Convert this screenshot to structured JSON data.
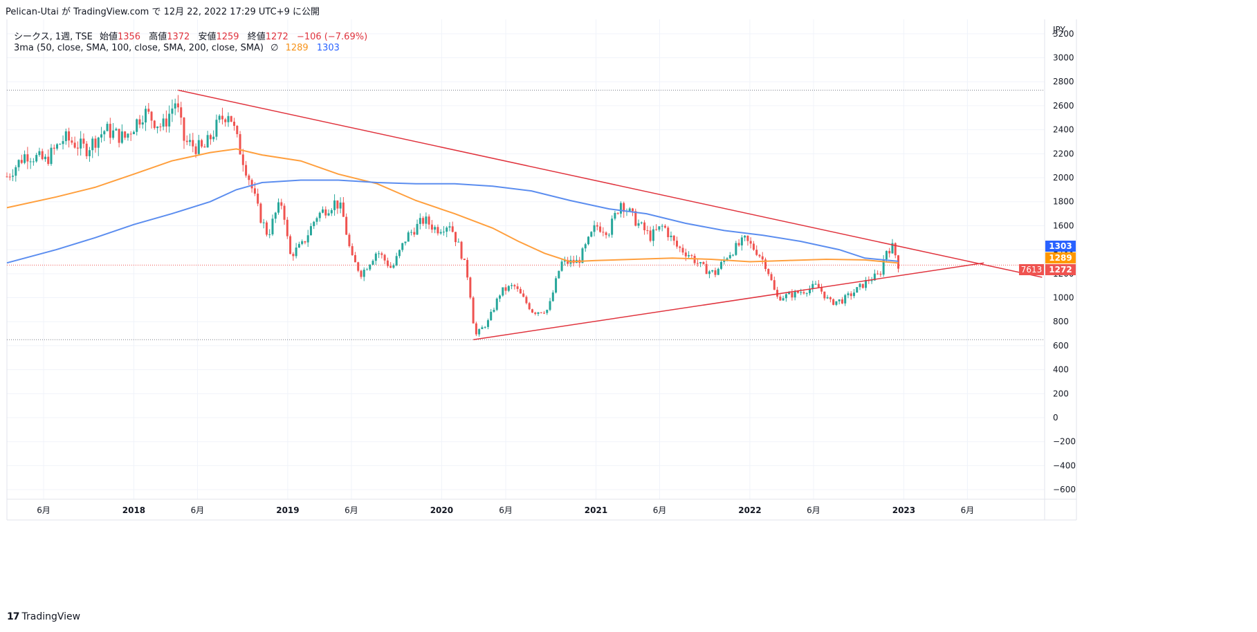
{
  "attribution": "Pelican-Utai が TradingView.com で 12月 22, 2022 17:29 UTC+9 に公開",
  "legend": {
    "symbol": "シークス, 1週, TSE",
    "open_label": "始値",
    "open": "1356",
    "high_label": "高値",
    "high": "1372",
    "low_label": "安値",
    "low": "1259",
    "close_label": "終値",
    "close": "1272",
    "change": "−106 (−7.69%)",
    "ma_label": "3ma (50, close, SMA, 100, close, SMA, 200, close, SMA)",
    "ma_hidden_icon": "∅",
    "ma100": "1289",
    "ma200": "1303"
  },
  "brand": "TradingView",
  "brand_logo": "17",
  "colors": {
    "up": "#26a69a",
    "down": "#ef5350",
    "ma100": "#ff9f3d",
    "ma200": "#5b8def",
    "trendline": "#e0333d",
    "grid": "#f0f3fa",
    "text": "#131722"
  },
  "chart_data": {
    "type": "candlestick",
    "currency": "JPY",
    "y_ticks": [
      3200,
      3000,
      2800,
      2600,
      2400,
      2200,
      2000,
      1800,
      1600,
      1400,
      1200,
      1000,
      800,
      600,
      400,
      200,
      0,
      -200,
      -400,
      -600
    ],
    "ylim": [
      -680,
      3320
    ],
    "xlim": [
      "2017-03-06",
      "2023-12-01"
    ],
    "x_ticks": [
      {
        "label": "6月",
        "date": "2017-06-01"
      },
      {
        "label": "2018",
        "date": "2018-01-01",
        "bold": true
      },
      {
        "label": "6月",
        "date": "2018-06-01"
      },
      {
        "label": "2019",
        "date": "2019-01-01",
        "bold": true
      },
      {
        "label": "6月",
        "date": "2019-06-01"
      },
      {
        "label": "2020",
        "date": "2020-01-01",
        "bold": true
      },
      {
        "label": "6月",
        "date": "2020-06-01"
      },
      {
        "label": "2021",
        "date": "2021-01-01",
        "bold": true
      },
      {
        "label": "6月",
        "date": "2021-06-01"
      },
      {
        "label": "2022",
        "date": "2022-01-01",
        "bold": true
      },
      {
        "label": "6月",
        "date": "2022-06-01"
      },
      {
        "label": "2023",
        "date": "2023-01-01",
        "bold": true
      },
      {
        "label": "6月",
        "date": "2023-06-01"
      }
    ],
    "price_series": {
      "name": "シークス",
      "points": [
        [
          "2017-03-06",
          2010
        ],
        [
          "2017-04-20",
          2200
        ],
        [
          "2017-06-05",
          2140
        ],
        [
          "2017-07-20",
          2330
        ],
        [
          "2017-09-10",
          2240
        ],
        [
          "2017-10-25",
          2400
        ],
        [
          "2017-12-10",
          2330
        ],
        [
          "2018-01-25",
          2550
        ],
        [
          "2018-03-10",
          2420
        ],
        [
          "2018-04-10",
          2640
        ],
        [
          "2018-05-01",
          2300
        ],
        [
          "2018-06-15",
          2230
        ],
        [
          "2018-07-25",
          2480
        ],
        [
          "2018-08-15",
          2560
        ],
        [
          "2018-09-01",
          2330
        ],
        [
          "2018-10-01",
          2000
        ],
        [
          "2018-10-25",
          1700
        ],
        [
          "2018-11-15",
          1520
        ],
        [
          "2018-12-05",
          1720
        ],
        [
          "2018-12-20",
          1800
        ],
        [
          "2019-01-05",
          1350
        ],
        [
          "2019-02-05",
          1440
        ],
        [
          "2019-03-10",
          1680
        ],
        [
          "2019-04-25",
          1800
        ],
        [
          "2019-05-10",
          1720
        ],
        [
          "2019-06-01",
          1330
        ],
        [
          "2019-06-25",
          1200
        ],
        [
          "2019-08-01",
          1390
        ],
        [
          "2019-09-05",
          1240
        ],
        [
          "2019-10-10",
          1510
        ],
        [
          "2019-11-20",
          1650
        ],
        [
          "2019-12-20",
          1570
        ],
        [
          "2020-01-20",
          1620
        ],
        [
          "2020-02-15",
          1390
        ],
        [
          "2020-03-05",
          1150
        ],
        [
          "2020-03-20",
          680
        ],
        [
          "2020-04-20",
          800
        ],
        [
          "2020-05-20",
          1050
        ],
        [
          "2020-06-20",
          1100
        ],
        [
          "2020-08-05",
          880
        ],
        [
          "2020-09-10",
          900
        ],
        [
          "2020-10-10",
          1290
        ],
        [
          "2020-11-20",
          1300
        ],
        [
          "2021-01-01",
          1600
        ],
        [
          "2021-02-01",
          1560
        ],
        [
          "2021-03-01",
          1800
        ],
        [
          "2021-04-10",
          1620
        ],
        [
          "2021-05-10",
          1510
        ],
        [
          "2021-06-10",
          1600
        ],
        [
          "2021-07-10",
          1430
        ],
        [
          "2021-08-10",
          1360
        ],
        [
          "2021-09-10",
          1250
        ],
        [
          "2021-10-10",
          1200
        ],
        [
          "2021-11-10",
          1360
        ],
        [
          "2021-12-20",
          1480
        ],
        [
          "2022-01-20",
          1380
        ],
        [
          "2022-02-10",
          1260
        ],
        [
          "2022-03-05",
          1000
        ],
        [
          "2022-04-05",
          1020
        ],
        [
          "2022-05-10",
          1060
        ],
        [
          "2022-06-10",
          1100
        ],
        [
          "2022-07-10",
          960
        ],
        [
          "2022-08-10",
          980
        ],
        [
          "2022-09-10",
          1060
        ],
        [
          "2022-10-10",
          1150
        ],
        [
          "2022-11-05",
          1190
        ],
        [
          "2022-11-20",
          1400
        ],
        [
          "2022-12-05",
          1420
        ],
        [
          "2022-12-12",
          1356
        ],
        [
          "2022-12-19",
          1272
        ]
      ]
    },
    "ma_series": [
      {
        "name": "ma100",
        "value": "1289",
        "points": [
          [
            "2017-03-06",
            1750
          ],
          [
            "2017-07-01",
            1840
          ],
          [
            "2017-10-01",
            1920
          ],
          [
            "2018-01-01",
            2030
          ],
          [
            "2018-04-01",
            2140
          ],
          [
            "2018-07-01",
            2210
          ],
          [
            "2018-09-01",
            2240
          ],
          [
            "2018-11-01",
            2190
          ],
          [
            "2019-02-01",
            2140
          ],
          [
            "2019-05-01",
            2030
          ],
          [
            "2019-08-01",
            1950
          ],
          [
            "2019-11-01",
            1810
          ],
          [
            "2020-02-01",
            1700
          ],
          [
            "2020-05-01",
            1580
          ],
          [
            "2020-07-01",
            1470
          ],
          [
            "2020-09-01",
            1370
          ],
          [
            "2020-11-01",
            1300
          ],
          [
            "2021-01-01",
            1310
          ],
          [
            "2021-04-01",
            1320
          ],
          [
            "2021-07-01",
            1330
          ],
          [
            "2021-10-01",
            1320
          ],
          [
            "2022-01-01",
            1300
          ],
          [
            "2022-04-01",
            1310
          ],
          [
            "2022-07-01",
            1320
          ],
          [
            "2022-10-01",
            1315
          ],
          [
            "2022-12-19",
            1289
          ]
        ]
      },
      {
        "name": "ma200",
        "value": "1303",
        "points": [
          [
            "2017-03-06",
            1290
          ],
          [
            "2017-07-01",
            1400
          ],
          [
            "2017-10-01",
            1500
          ],
          [
            "2018-01-01",
            1610
          ],
          [
            "2018-04-01",
            1700
          ],
          [
            "2018-07-01",
            1800
          ],
          [
            "2018-09-01",
            1900
          ],
          [
            "2018-11-01",
            1960
          ],
          [
            "2019-02-01",
            1980
          ],
          [
            "2019-05-01",
            1980
          ],
          [
            "2019-08-01",
            1960
          ],
          [
            "2019-11-01",
            1950
          ],
          [
            "2020-02-01",
            1950
          ],
          [
            "2020-05-01",
            1930
          ],
          [
            "2020-08-01",
            1890
          ],
          [
            "2020-11-01",
            1810
          ],
          [
            "2021-02-01",
            1740
          ],
          [
            "2021-05-01",
            1700
          ],
          [
            "2021-08-01",
            1620
          ],
          [
            "2021-11-01",
            1560
          ],
          [
            "2022-02-01",
            1520
          ],
          [
            "2022-05-01",
            1470
          ],
          [
            "2022-08-01",
            1400
          ],
          [
            "2022-10-01",
            1330
          ],
          [
            "2022-12-19",
            1303
          ]
        ]
      }
    ],
    "trendlines": [
      {
        "name": "upper",
        "from": [
          "2018-04-16",
          2730
        ],
        "to": [
          "2023-11-25",
          1170
        ]
      },
      {
        "name": "lower",
        "from": [
          "2020-03-16",
          650
        ],
        "to": [
          "2023-07-10",
          1290
        ]
      }
    ],
    "horizontal_levels": [
      2730,
      650,
      1272
    ],
    "price_labels": [
      {
        "text": "1303",
        "value": 1303,
        "color": "#2962ff"
      },
      {
        "text": "1289",
        "value": 1289,
        "color": "#ff9800"
      },
      {
        "text": "1272",
        "value": 1272,
        "color": "#ef5350"
      }
    ],
    "trendline_label": "7613"
  }
}
